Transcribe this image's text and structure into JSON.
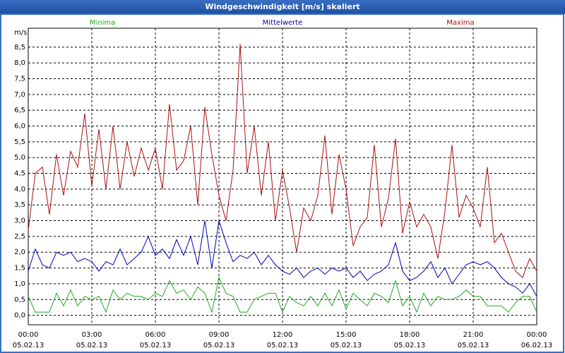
{
  "chart_data": {
    "type": "line",
    "title": "Windgeschwindigkeit [m/s] skaliert",
    "ylabel": "m/s",
    "x": [
      0,
      20,
      40,
      60,
      80,
      100,
      120,
      140,
      160,
      180,
      200,
      220,
      240,
      260,
      280,
      300,
      320,
      340,
      360,
      380,
      400,
      420,
      440,
      460,
      480,
      500,
      520,
      540,
      560,
      580,
      600,
      620,
      640,
      660,
      680,
      700,
      720,
      740,
      760,
      780,
      800,
      820,
      840,
      860,
      880,
      900,
      920,
      940,
      960,
      980,
      1000,
      1020,
      1040,
      1060,
      1080,
      1100,
      1120,
      1140,
      1160,
      1180,
      1200,
      1220,
      1240,
      1260,
      1280,
      1300,
      1320,
      1340,
      1360,
      1380,
      1400,
      1420,
      1440
    ],
    "series": [
      {
        "name": "Minima",
        "color": "#22aa22",
        "values": [
          0.6,
          0.1,
          0.1,
          0.1,
          0.7,
          0.3,
          0.8,
          0.3,
          0.6,
          0.5,
          0.6,
          0.1,
          0.8,
          0.5,
          0.7,
          0.6,
          0.6,
          0.5,
          0.7,
          0.6,
          1.1,
          0.7,
          0.8,
          0.5,
          0.9,
          0.7,
          0.1,
          1.2,
          0.7,
          0.6,
          0.1,
          0.1,
          0.5,
          0.6,
          0.7,
          0.7,
          0.1,
          0.6,
          0.4,
          0.3,
          0.6,
          0.3,
          0.7,
          0.3,
          0.8,
          0.2,
          0.7,
          0.5,
          0.3,
          0.7,
          0.6,
          0.4,
          1.1,
          0.3,
          0.6,
          0.1,
          0.7,
          0.3,
          0.6,
          0.5,
          0.5,
          0.6,
          0.8,
          0.6,
          0.6,
          0.3,
          0.3,
          0.3,
          0.1,
          0.4,
          0.6,
          0.6,
          0.1
        ]
      },
      {
        "name": "Mittelwerte",
        "color": "#0000bb",
        "values": [
          1.4,
          2.1,
          1.6,
          1.5,
          2.0,
          1.9,
          2.0,
          1.7,
          1.8,
          1.7,
          1.4,
          1.7,
          1.6,
          2.1,
          1.6,
          1.8,
          2.0,
          2.5,
          1.9,
          2.1,
          1.8,
          2.4,
          1.9,
          2.5,
          1.6,
          3.0,
          1.5,
          3.0,
          2.3,
          1.7,
          1.9,
          1.8,
          2.0,
          1.6,
          1.9,
          1.6,
          1.4,
          1.3,
          1.5,
          1.2,
          1.4,
          1.5,
          1.3,
          1.5,
          1.4,
          1.5,
          1.2,
          1.4,
          1.1,
          1.3,
          1.4,
          1.6,
          2.3,
          1.4,
          1.1,
          1.2,
          1.4,
          1.7,
          1.2,
          1.5,
          1.0,
          1.3,
          1.6,
          1.7,
          1.6,
          1.7,
          1.5,
          1.2,
          1.0,
          0.9,
          0.7,
          1.0,
          0.6
        ]
      },
      {
        "name": "Maxima",
        "color": "#aa1111",
        "values": [
          2.7,
          4.5,
          4.7,
          3.2,
          5.1,
          3.8,
          5.2,
          4.7,
          6.4,
          4.1,
          5.9,
          4.0,
          6.0,
          4.0,
          5.5,
          4.4,
          5.3,
          4.6,
          5.3,
          4.0,
          6.7,
          4.6,
          4.9,
          6.0,
          3.5,
          6.6,
          5.1,
          3.8,
          3.0,
          4.6,
          8.6,
          4.5,
          6.0,
          3.8,
          5.5,
          3.0,
          4.6,
          3.4,
          2.0,
          3.4,
          3.0,
          3.8,
          5.7,
          3.2,
          5.1,
          4.0,
          2.2,
          2.8,
          3.1,
          5.4,
          2.8,
          3.7,
          5.6,
          2.6,
          3.6,
          2.8,
          3.2,
          2.8,
          1.8,
          3.3,
          5.4,
          3.1,
          3.8,
          3.4,
          2.8,
          4.7,
          2.3,
          2.6,
          2.0,
          1.4,
          1.2,
          1.8,
          1.4
        ]
      }
    ],
    "xlim": [
      0,
      1440
    ],
    "xticks": [
      {
        "value": 0,
        "label": "00:00 05.02.13"
      },
      {
        "value": 180,
        "label": "03:00 05.02.13"
      },
      {
        "value": 360,
        "label": "06:00 05.02.13"
      },
      {
        "value": 540,
        "label": "09:00 05.02.13"
      },
      {
        "value": 720,
        "label": "12:00 05.02.13"
      },
      {
        "value": 900,
        "label": "15:00 05.02.13"
      },
      {
        "value": 1080,
        "label": "18:00 05.02.13"
      },
      {
        "value": 1260,
        "label": "21:00 05.02.13"
      },
      {
        "value": 1440,
        "label": "00:00 06.02.13"
      }
    ],
    "ylim": [
      -0.3,
      9.1
    ],
    "yticks": [
      {
        "value": 0,
        "label": "0,0"
      },
      {
        "value": 0.5,
        "label": "0,5"
      },
      {
        "value": 1,
        "label": "1,0"
      },
      {
        "value": 1.5,
        "label": "1,5"
      },
      {
        "value": 2,
        "label": "2,0"
      },
      {
        "value": 2.5,
        "label": "2,5"
      },
      {
        "value": 3,
        "label": "3,0"
      },
      {
        "value": 3.5,
        "label": "3,5"
      },
      {
        "value": 4,
        "label": "4,0"
      },
      {
        "value": 4.5,
        "label": "4,5"
      },
      {
        "value": 5,
        "label": "5,0"
      },
      {
        "value": 5.5,
        "label": "5,5"
      },
      {
        "value": 6,
        "label": "6,0"
      },
      {
        "value": 6.5,
        "label": "6,5"
      },
      {
        "value": 7,
        "label": "7,0"
      },
      {
        "value": 7.5,
        "label": "7,5"
      },
      {
        "value": 8,
        "label": "8,0"
      },
      {
        "value": 8.5,
        "label": "8,5"
      }
    ],
    "grid": true
  }
}
